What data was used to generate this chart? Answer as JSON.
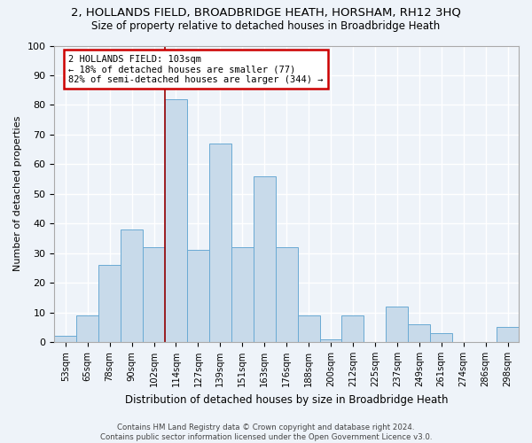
{
  "title1": "2, HOLLANDS FIELD, BROADBRIDGE HEATH, HORSHAM, RH12 3HQ",
  "title2": "Size of property relative to detached houses in Broadbridge Heath",
  "xlabel": "Distribution of detached houses by size in Broadbridge Heath",
  "ylabel": "Number of detached properties",
  "footer1": "Contains HM Land Registry data © Crown copyright and database right 2024.",
  "footer2": "Contains public sector information licensed under the Open Government Licence v3.0.",
  "annotation_title": "2 HOLLANDS FIELD: 103sqm",
  "annotation_line1": "← 18% of detached houses are smaller (77)",
  "annotation_line2": "82% of semi-detached houses are larger (344) →",
  "bar_labels": [
    "53sqm",
    "65sqm",
    "78sqm",
    "90sqm",
    "102sqm",
    "114sqm",
    "127sqm",
    "139sqm",
    "151sqm",
    "163sqm",
    "176sqm",
    "188sqm",
    "200sqm",
    "212sqm",
    "225sqm",
    "237sqm",
    "249sqm",
    "261sqm",
    "274sqm",
    "286sqm",
    "298sqm"
  ],
  "bar_values": [
    2,
    9,
    26,
    38,
    32,
    82,
    31,
    67,
    32,
    56,
    32,
    9,
    1,
    9,
    0,
    12,
    6,
    3,
    0,
    0,
    5
  ],
  "bar_color": "#c8daea",
  "bar_edge_color": "#6aaad4",
  "vline_x": 4.5,
  "ylim": [
    0,
    100
  ],
  "yticks": [
    0,
    10,
    20,
    30,
    40,
    50,
    60,
    70,
    80,
    90,
    100
  ],
  "bg_color": "#eef3f9",
  "grid_color": "#ffffff",
  "title1_fontsize": 9,
  "title2_fontsize": 8.5
}
